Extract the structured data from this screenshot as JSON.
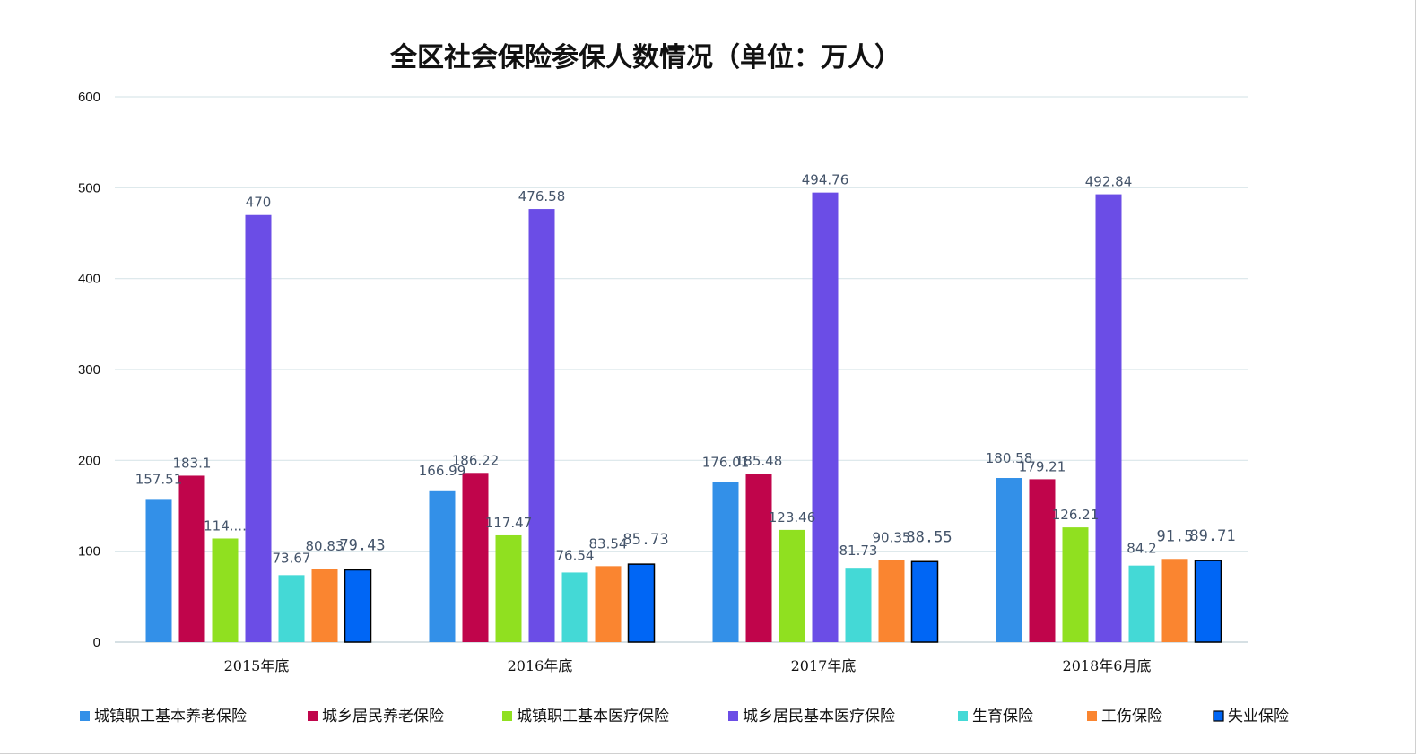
{
  "chart_data": {
    "type": "bar",
    "title": "全区社会保险参保人数情况（单位：万人）",
    "xlabel": "",
    "ylabel": "",
    "ylim": [
      0,
      600
    ],
    "yticks": [
      "0",
      "100",
      "200",
      "300",
      "400",
      "500",
      "600"
    ],
    "grid": true,
    "legend_position": "bottom",
    "categories": [
      "2015年底",
      "2016年底",
      "2017年底",
      "2018年6月底"
    ],
    "series": [
      {
        "name": "城镇职工基本养老保险",
        "color": "#3390e8",
        "values": [
          157.51,
          166.99,
          176.01,
          180.58
        ],
        "labels": [
          "157.51",
          "166.99",
          "176.01",
          "180.58"
        ]
      },
      {
        "name": "城乡居民养老保险",
        "color": "#c0054b",
        "values": [
          183.1,
          186.22,
          185.48,
          179.21
        ],
        "labels": [
          "183.1",
          "186.22",
          "185.48",
          "179.21"
        ]
      },
      {
        "name": "城镇职工基本医疗保险",
        "color": "#90e020",
        "values": [
          114,
          117.47,
          123.46,
          126.21
        ],
        "labels": [
          "114....",
          "117.47",
          "123.46",
          "126.21"
        ]
      },
      {
        "name": "城乡居民基本医疗保险",
        "color": "#6b4de6",
        "values": [
          470,
          476.58,
          494.76,
          492.84
        ],
        "labels": [
          "470",
          "476.58",
          "494.76",
          "492.84"
        ]
      },
      {
        "name": "生育保险",
        "color": "#44d9d6",
        "values": [
          73.67,
          76.54,
          81.73,
          84.2
        ],
        "labels": [
          "73.67",
          "76.54",
          "81.73",
          "84.2"
        ]
      },
      {
        "name": "工伤保险",
        "color": "#fa8530",
        "values": [
          80.83,
          83.54,
          90.35,
          91.5
        ],
        "labels": [
          "80.83",
          "83.54",
          "90.35",
          "91.5"
        ]
      },
      {
        "name": "失业保险",
        "color": "#0066f5",
        "stroke": "#000000",
        "values": [
          79.43,
          85.73,
          88.55,
          89.71
        ],
        "labels": [
          "79.43",
          "85.73",
          "88.55",
          "89.71"
        ]
      }
    ]
  }
}
